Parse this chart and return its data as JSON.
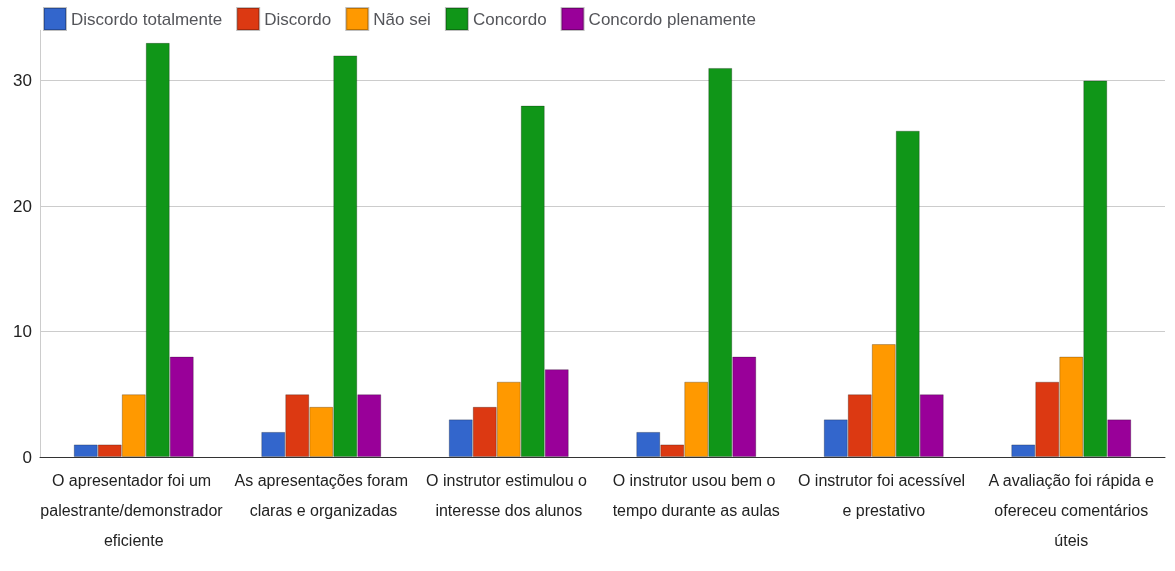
{
  "chart_data": {
    "type": "bar",
    "categories": [
      "O apresentador foi um palestrante/demonstrador eficiente",
      "As apresentações foram claras e organizadas",
      "O instrutor estimulou o interesse dos alunos",
      "O instrutor usou bem o tempo durante as aulas",
      "O instrutor foi acessível e prestativo",
      "A avaliação foi rápida e ofereceu comentários úteis"
    ],
    "series": [
      {
        "name": "Discordo totalmente",
        "color": "#3366cc",
        "values": [
          1,
          2,
          3,
          2,
          3,
          1
        ]
      },
      {
        "name": "Discordo",
        "color": "#dc3912",
        "values": [
          1,
          5,
          4,
          1,
          5,
          6
        ]
      },
      {
        "name": "Não sei",
        "color": "#ff9900",
        "values": [
          5,
          4,
          6,
          6,
          9,
          8
        ]
      },
      {
        "name": "Concordo",
        "color": "#109618",
        "values": [
          33,
          32,
          28,
          31,
          26,
          30
        ]
      },
      {
        "name": "Concordo plenamente",
        "color": "#990099",
        "values": [
          8,
          5,
          7,
          8,
          5,
          3
        ]
      }
    ],
    "ylim": [
      0,
      34
    ],
    "yticks": [
      0,
      10,
      20,
      30
    ],
    "grid": "y",
    "legend": "top left"
  }
}
